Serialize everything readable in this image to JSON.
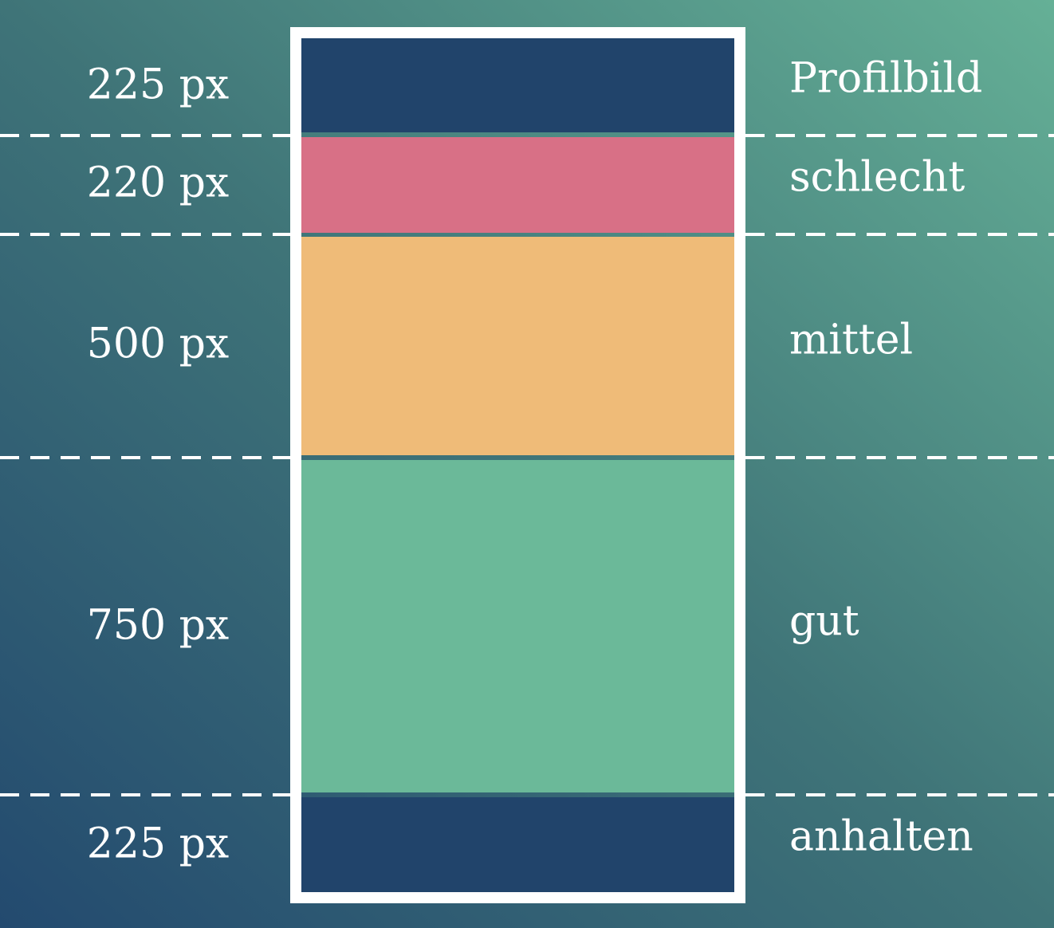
{
  "sections": [
    {
      "size": "225 px",
      "label": "Profilbild"
    },
    {
      "size": "220 px",
      "label": "schlecht"
    },
    {
      "size": "500 px",
      "label": "mittel"
    },
    {
      "size": "750 px",
      "label": "gut"
    },
    {
      "size": "225 px",
      "label": "anhalten"
    }
  ]
}
